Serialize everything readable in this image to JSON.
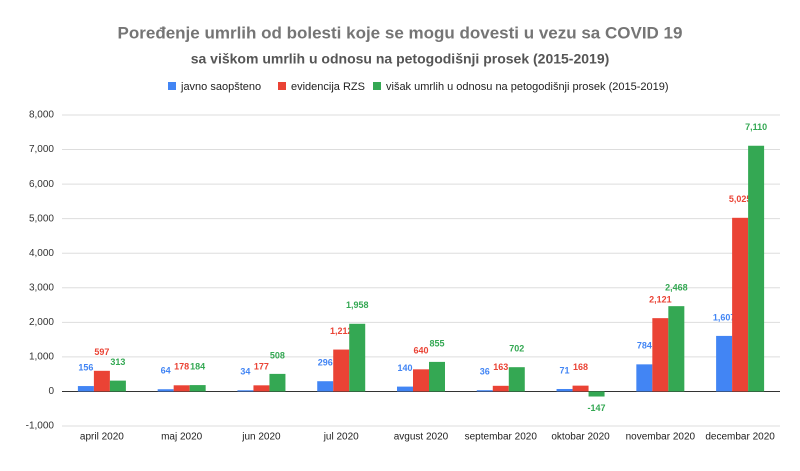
{
  "chart_data": {
    "type": "bar",
    "title": "Poređenje umrlih od bolesti koje se mogu dovesti u vezu sa COVID 19",
    "subtitle": "sa viškom umrlih u odnosu na petogodišnji prosek (2015-2019)",
    "categories": [
      "april 2020",
      "maj 2020",
      "jun 2020",
      "jul 2020",
      "avgust 2020",
      "septembar 2020",
      "oktobar 2020",
      "novembar 2020",
      "decembar 2020"
    ],
    "series": [
      {
        "name": "javno saopšteno",
        "color": "#4285f4",
        "values": [
          156,
          64,
          34,
          296,
          140,
          36,
          71,
          784,
          1607
        ],
        "value_labels": [
          "156",
          "64",
          "34",
          "296",
          "140",
          "36",
          "71",
          "784",
          "1,607"
        ]
      },
      {
        "name": "evidencija RZS",
        "color": "#ea4335",
        "values": [
          597,
          178,
          177,
          1212,
          640,
          163,
          168,
          2121,
          5025
        ],
        "value_labels": [
          "597",
          "178",
          "177",
          "1,212",
          "640",
          "163",
          "168",
          "2,121",
          "5,025"
        ]
      },
      {
        "name": "višak umrlih u odnosu na petogodišnji prosek (2015-2019)",
        "color": "#34a853",
        "values": [
          313,
          184,
          508,
          1958,
          855,
          702,
          -147,
          2468,
          7110
        ],
        "value_labels": [
          "313",
          "184",
          "508",
          "1,958",
          "855",
          "702",
          "-147",
          "2,468",
          "7,110"
        ]
      }
    ],
    "ylim": [
      -1000,
      8000
    ],
    "yticks": [
      {
        "value": -1000,
        "label": "-1,000"
      },
      0,
      {
        "value": 1000,
        "label": "1,000"
      },
      {
        "value": 2000,
        "label": "2,000"
      },
      {
        "value": 3000,
        "label": "3,000"
      },
      {
        "value": 4000,
        "label": "4,000"
      },
      {
        "value": 5000,
        "label": "5,000"
      },
      {
        "value": 6000,
        "label": "6,000"
      },
      {
        "value": 7000,
        "label": "7,000"
      },
      {
        "value": 8000,
        "label": "8,000"
      }
    ],
    "grid": true
  }
}
